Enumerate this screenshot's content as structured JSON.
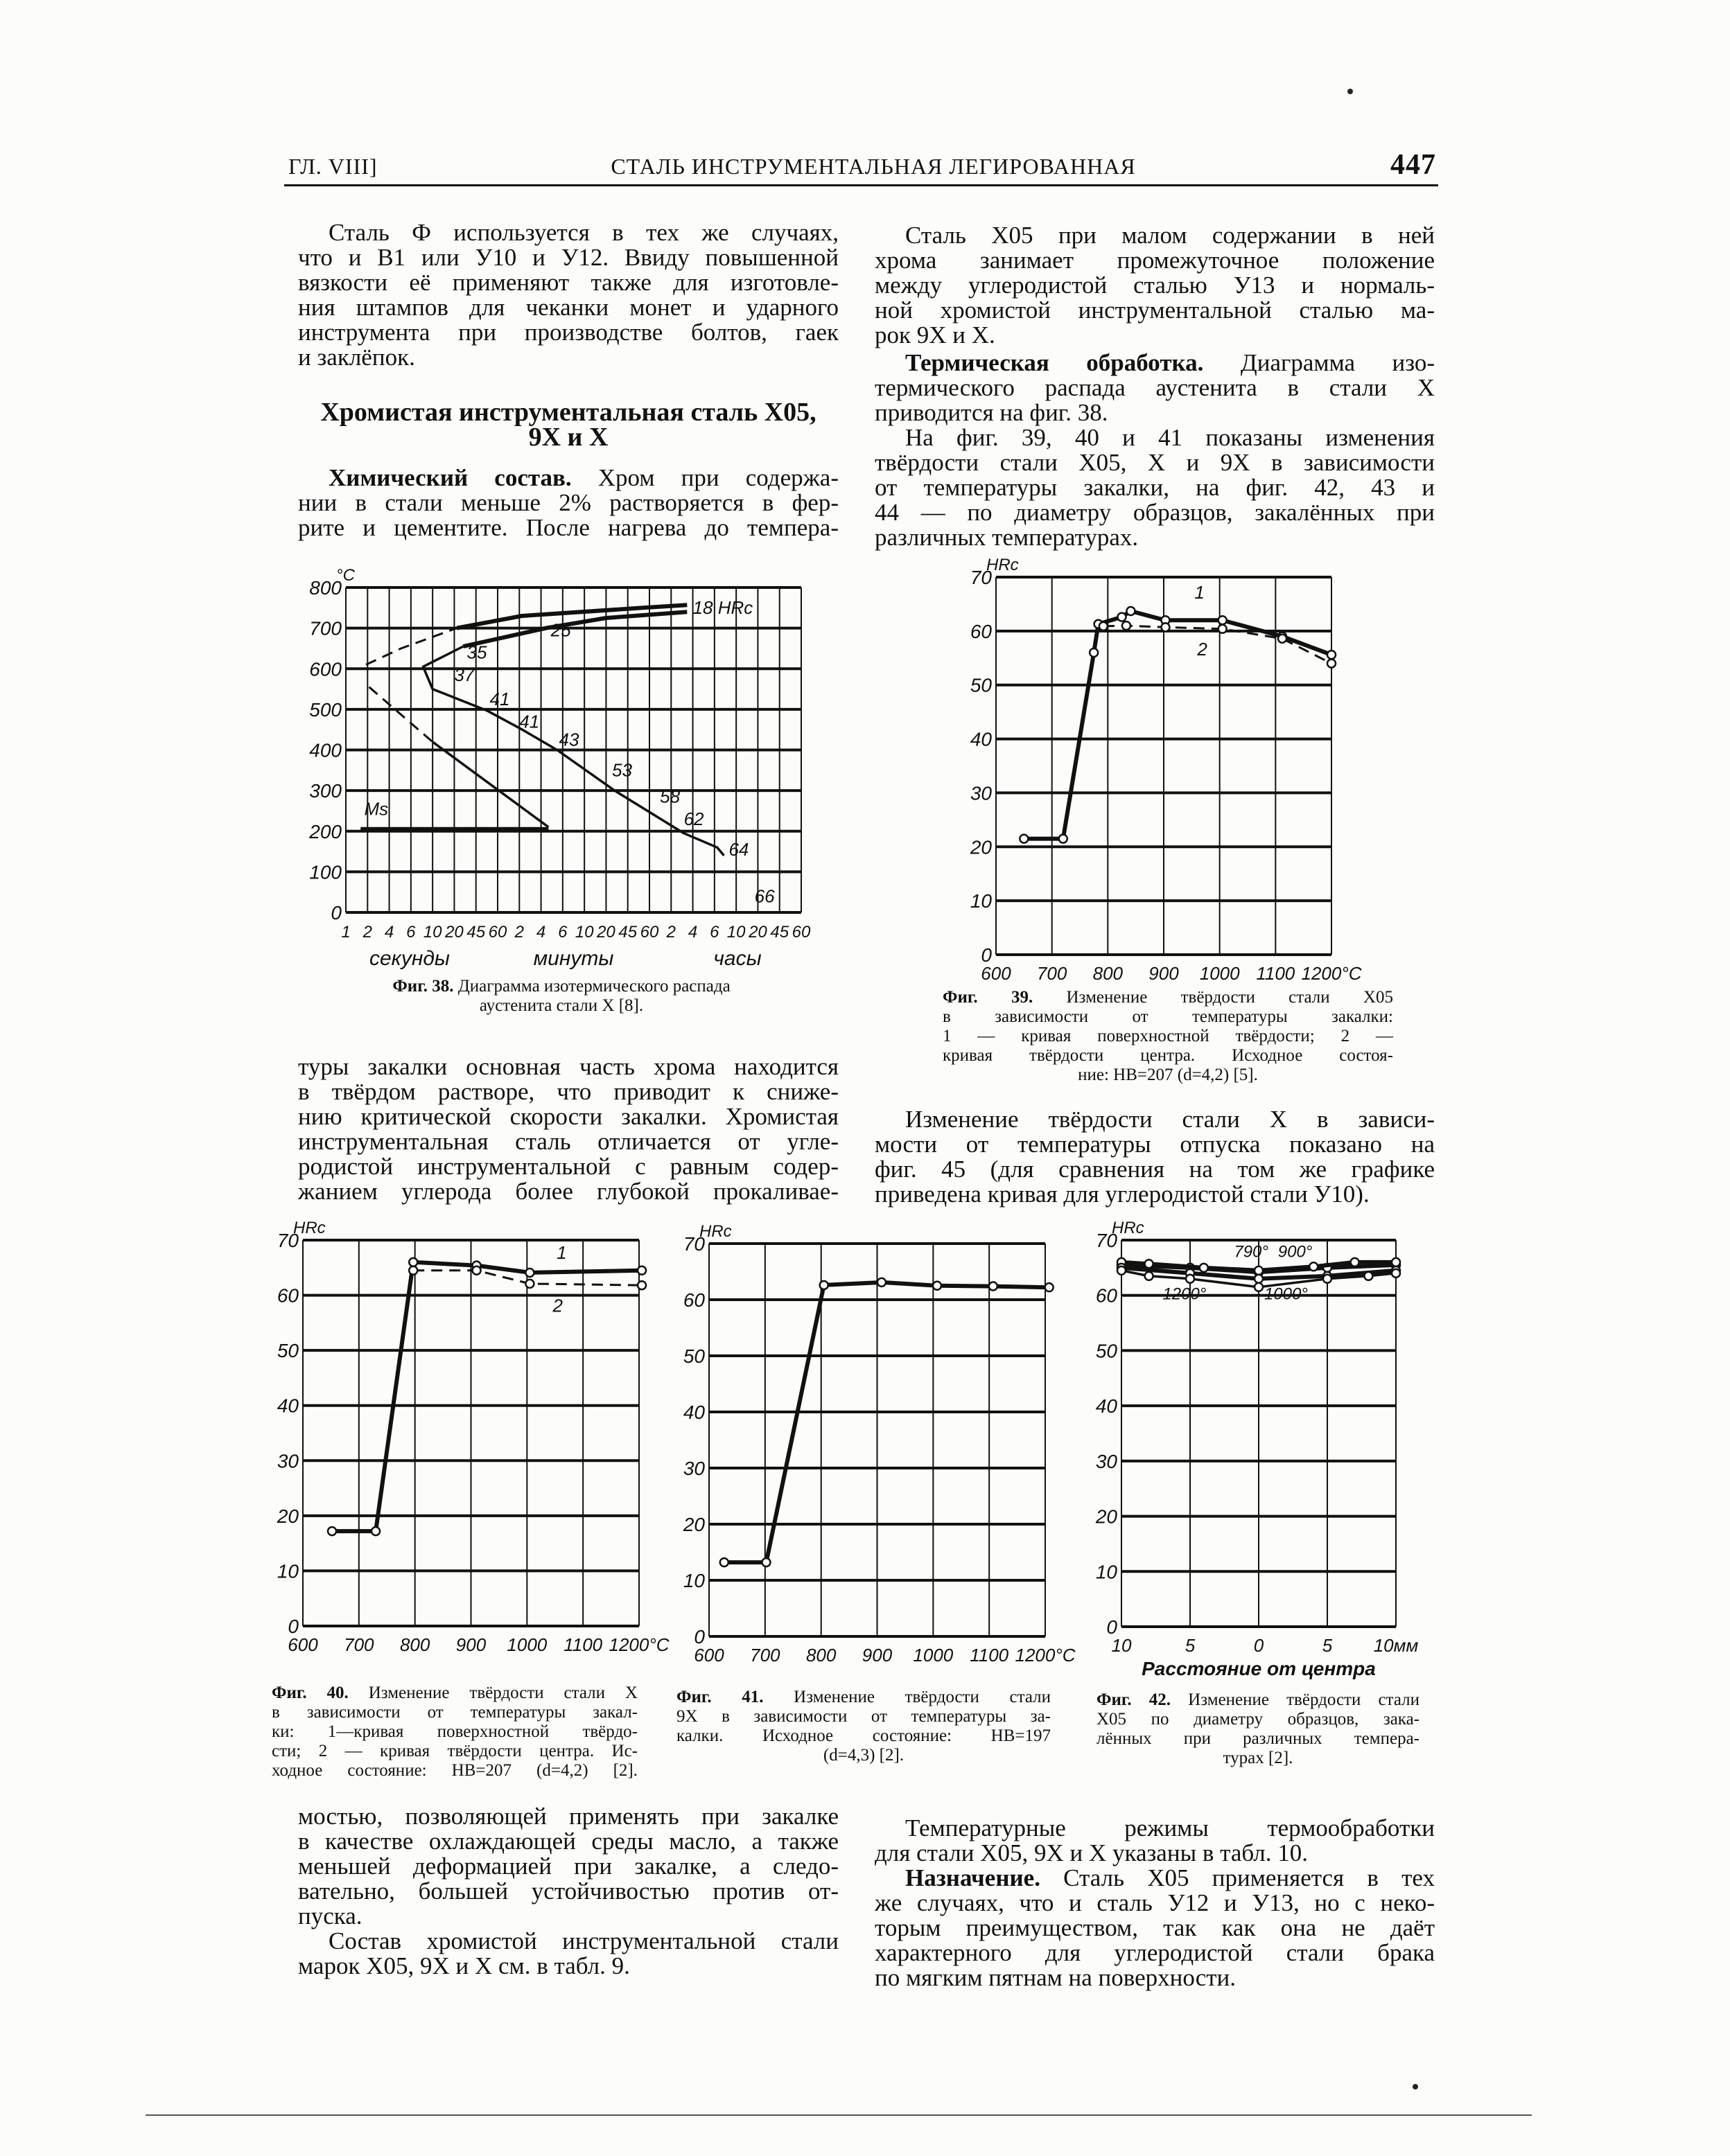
{
  "header": {
    "chapter": "ГЛ. VIII]",
    "title": "СТАЛЬ ИНСТРУМЕНТАЛЬНАЯ ЛЕГИРОВАННАЯ",
    "page_number": "447"
  },
  "left_column": {
    "para1": [
      {
        "text": "Сталь Ф используется в тех же случаях,",
        "indent": true
      },
      {
        "text": "что и В1 или У10 и У12. Ввиду повышенной"
      },
      {
        "text": "вязкости её применяют также для изготовле-"
      },
      {
        "text": "ния штампов для чеканки монет и ударного"
      },
      {
        "text": "инструмента при производстве болтов, гаек"
      },
      {
        "text": "и заклёпок.",
        "last": true
      }
    ],
    "heading": [
      "Хромистая инструментальная сталь Х05,",
      "9Х и Х"
    ],
    "para2": [
      {
        "bold": "Химический состав.",
        "text": " Хром при содержа-",
        "indent": true
      },
      {
        "text": "нии в стали меньше 2% растворяется в фер-"
      },
      {
        "text": "рите и цементите. После нагрева до темпера-"
      }
    ],
    "para3": [
      {
        "text": "туры закалки основная часть хрома находится"
      },
      {
        "text": "в твёрдом растворе, что приводит к сниже-"
      },
      {
        "text": "нию критической скорости закалки. Хромистая"
      },
      {
        "text": "инструментальная сталь отличается от угле-"
      },
      {
        "text": "родистой инструментальной с равным содер-"
      },
      {
        "text": "жанием углерода более глубокой прокаливае-"
      }
    ],
    "para4": [
      {
        "text": "мостью, позволяющей применять при закалке"
      },
      {
        "text": "в качестве охлаждающей среды масло, а также"
      },
      {
        "text": "меньшей деформацией при закалке, а следо-"
      },
      {
        "text": "вательно, большей устойчивостью против от-"
      },
      {
        "text": "пуска.",
        "last": true
      },
      {
        "text": "Состав хромистой инструментальной стали",
        "indent": true
      },
      {
        "text": "марок Х05, 9Х и Х см. в табл. 9.",
        "last": true
      }
    ]
  },
  "right_column": {
    "para1": [
      {
        "text": "Сталь Х05 при малом содержании в ней",
        "indent": true
      },
      {
        "text": "хрома занимает промежуточное положение"
      },
      {
        "text": "между углеродистой сталью У13 и нормаль-"
      },
      {
        "text": "ной хромистой инструментальной сталью ма-"
      },
      {
        "text": "рок 9Х и Х.",
        "last": true
      }
    ],
    "para2": [
      {
        "bold": "Термическая обработка.",
        "text": " Диаграмма изо-",
        "indent": true
      },
      {
        "text": "термического распада аустенита в стали Х"
      },
      {
        "text": "приводится на фиг. 38.",
        "last": true
      },
      {
        "text": "На фиг. 39, 40 и 41 показаны изменения",
        "indent": true
      },
      {
        "text": "твёрдости стали Х05, Х и 9Х в зависимости"
      },
      {
        "text": "от температуры закалки, на фиг. 42, 43 и"
      },
      {
        "text": "44 — по диаметру образцов, закалённых при"
      },
      {
        "text": "различных температурах.",
        "last": true
      }
    ],
    "para3": [
      {
        "text": "Изменение твёрдости стали Х в зависи-",
        "indent": true
      },
      {
        "text": "мости от температуры отпуска показано на"
      },
      {
        "text": "фиг. 45 (для сравнения на том же графике"
      },
      {
        "text": "приведена кривая для углеродистой стали У10).",
        "last": true
      }
    ],
    "para4": [
      {
        "text": "Температурные режимы термообработки",
        "indent": true
      },
      {
        "text": "для стали Х05, 9Х и Х указаны в табл. 10.",
        "last": true
      },
      {
        "bold": "Назначение.",
        "text": " Сталь Х05 применяется в тех",
        "indent": true
      },
      {
        "text": "же случаях, что и сталь У12 и У13, но с неко-"
      },
      {
        "text": "торым преимуществом, так как она не даёт"
      },
      {
        "text": "характерного для углеродистой стали брака"
      },
      {
        "text": "по мягким пятнам на поверхности.",
        "last": true
      }
    ]
  },
  "captions": {
    "fig38": [
      {
        "bold": "Фиг. 38.",
        "text": " Диаграмма изотермического распада",
        "center": true
      },
      {
        "text": "аустенита стали Х [8].",
        "center": true
      }
    ],
    "fig39": [
      {
        "bold": "Фиг. 39.",
        "text": " Изменение твёрдости стали Х05"
      },
      {
        "text": "в зависимости от температуры закалки:"
      },
      {
        "text": "1 — кривая поверхностной твёрдости; 2 —"
      },
      {
        "text": "кривая твёрдости центра. Исходное состоя-"
      },
      {
        "text": "ние: HB=207 (d=4,2) [5].",
        "center": true
      }
    ],
    "fig40": [
      {
        "bold": "Фиг. 40.",
        "text": " Изменение твёрдости стали Х"
      },
      {
        "text": "в зависимости от температуры закал-"
      },
      {
        "text": "ки: 1—кривая поверхностной твёрдо-"
      },
      {
        "text": "сти; 2 — кривая твёрдости центра. Ис-"
      },
      {
        "text": "ходное состояние: HB=207 (d=4,2) [2]."
      }
    ],
    "fig41": [
      {
        "bold": "Фиг. 41.",
        "text": " Изменение твёрдости стали"
      },
      {
        "text": "9Х в зависимости от температуры за-"
      },
      {
        "text": "калки. Исходное состояние: HB=197"
      },
      {
        "text": "(d=4,3) [2].",
        "center": true
      }
    ],
    "fig42": [
      {
        "bold": "Фиг. 42.",
        "text": " Изменение твёрдости стали"
      },
      {
        "text": "Х05 по диаметру образцов, зака-"
      },
      {
        "text": "лённых при различных темпера-"
      },
      {
        "text": "турах [2].",
        "center": true
      }
    ]
  },
  "chart_data": [
    {
      "id": "fig38",
      "type": "line",
      "ylabel": "°C",
      "ylim": [
        0,
        800
      ],
      "yticks": [
        0,
        100,
        200,
        300,
        400,
        500,
        600,
        700,
        800
      ],
      "xlabel_groups": [
        "секунды",
        "минуты",
        "часы"
      ],
      "x_unit": "seconds",
      "xtick_values": [
        1,
        2,
        4,
        6,
        10,
        20,
        45,
        60,
        120,
        240,
        360,
        600,
        1200,
        2700,
        3600,
        7200,
        14400,
        21600,
        36000,
        72000,
        162000,
        216000
      ],
      "xtick_labels": [
        "1",
        "2",
        "4",
        "6",
        "10",
        "20",
        "45",
        "60",
        "2",
        "4",
        "6",
        "10",
        "20",
        "45",
        "60",
        "2",
        "4",
        "6",
        "10",
        "20",
        "45",
        "60"
      ],
      "grid": true,
      "series": [
        {
          "style": "dashed",
          "points": [
            [
              1.9,
              610
            ],
            [
              5,
              650
            ],
            [
              22,
              700
            ]
          ]
        },
        {
          "style": "thick",
          "points": [
            [
              22,
              700
            ],
            [
              130,
              730
            ],
            [
              3300,
              750
            ],
            [
              12000,
              757
            ]
          ]
        },
        {
          "style": "thick",
          "points": [
            [
              12000,
              740
            ],
            [
              1200,
              725
            ],
            [
              264,
              700
            ],
            [
              28,
              655
            ]
          ]
        },
        {
          "style": "thin",
          "points": [
            [
              28,
              655
            ],
            [
              8,
              605
            ],
            [
              10,
              550
            ],
            [
              52,
              497
            ],
            [
              132,
              450
            ],
            [
              324,
              400
            ],
            [
              1650,
              300
            ],
            [
              10800,
              195
            ],
            [
              23000,
              160
            ],
            [
              27000,
              140
            ]
          ]
        },
        {
          "style": "dashed",
          "points": [
            [
              2.1,
              555
            ],
            [
              10,
              420
            ]
          ]
        },
        {
          "style": "thin",
          "points": [
            [
              10,
              420
            ],
            [
              276,
              210
            ]
          ]
        },
        {
          "style": "thick",
          "points": [
            [
              1.6,
              205
            ],
            [
              276,
              205
            ]
          ]
        }
      ],
      "annotations": [
        {
          "text": "Ms",
          "x": 1.8,
          "y": 240
        },
        {
          "text": "35",
          "x": 32,
          "y": 625
        },
        {
          "text": "37",
          "x": 20,
          "y": 570
        },
        {
          "text": "41",
          "x": 54,
          "y": 510
        },
        {
          "text": "41",
          "x": 120,
          "y": 455
        },
        {
          "text": "43",
          "x": 336,
          "y": 410
        },
        {
          "text": "53",
          "x": 1500,
          "y": 335
        },
        {
          "text": "58",
          "x": 5040,
          "y": 270
        },
        {
          "text": "62",
          "x": 10800,
          "y": 215
        },
        {
          "text": "64",
          "x": 30240,
          "y": 140
        },
        {
          "text": "66",
          "x": 64800,
          "y": 25
        },
        {
          "text": "25",
          "x": 288,
          "y": 680
        },
        {
          "text": "18 HRc",
          "x": 14400,
          "y": 735
        }
      ]
    },
    {
      "id": "fig39",
      "type": "line",
      "ylabel": "HRc",
      "ylim": [
        0,
        70
      ],
      "yticks": [
        0,
        10,
        20,
        30,
        40,
        50,
        60,
        70
      ],
      "xlim": [
        600,
        1200
      ],
      "xtick_values": [
        600,
        700,
        800,
        900,
        1000,
        1100,
        1200
      ],
      "xtick_labels": [
        "600",
        "700",
        "800",
        "900",
        "1000",
        "1100",
        "1200°C"
      ],
      "grid": true,
      "markers": true,
      "series": [
        {
          "name": "1",
          "style": "thick",
          "points": [
            [
              650,
              21.5
            ],
            [
              720,
              21.5
            ],
            [
              775,
              56
            ],
            [
              783,
              61.3
            ],
            [
              825,
              62.6
            ],
            [
              841,
              63.7
            ],
            [
              903,
              62
            ],
            [
              1005,
              62
            ],
            [
              1112,
              59
            ],
            [
              1200,
              55.6
            ]
          ]
        },
        {
          "name": "2",
          "style": "dashed",
          "points": [
            [
              792,
              60.9
            ],
            [
              833,
              61
            ],
            [
              903,
              60.7
            ],
            [
              1005,
              60.4
            ],
            [
              1112,
              58.6
            ],
            [
              1200,
              54
            ]
          ]
        }
      ],
      "annotations": [
        {
          "text": "1",
          "x": 955,
          "y": 66
        },
        {
          "text": "2",
          "x": 960,
          "y": 55.5
        }
      ]
    },
    {
      "id": "fig40",
      "type": "line",
      "ylabel": "HRc",
      "ylim": [
        0,
        70
      ],
      "yticks": [
        0,
        10,
        20,
        30,
        40,
        50,
        60,
        70
      ],
      "xlim": [
        600,
        1200
      ],
      "xtick_values": [
        600,
        700,
        800,
        900,
        1000,
        1100,
        1200
      ],
      "xtick_labels": [
        "600",
        "700",
        "800",
        "900",
        "1000",
        "1100",
        "1200°C"
      ],
      "grid": true,
      "markers": true,
      "series": [
        {
          "name": "1",
          "style": "thick",
          "points": [
            [
              652,
              17.2
            ],
            [
              730,
              17.2
            ],
            [
              797,
              66
            ],
            [
              910,
              65.4
            ],
            [
              1005,
              64.1
            ],
            [
              1205,
              64.5
            ]
          ]
        },
        {
          "name": "2",
          "style": "dashed",
          "points": [
            [
              797,
              64.5
            ],
            [
              910,
              64.5
            ],
            [
              1005,
              62.1
            ],
            [
              1205,
              61.8
            ]
          ]
        }
      ],
      "annotations": [
        {
          "text": "1",
          "x": 1053,
          "y": 66.6
        },
        {
          "text": "2",
          "x": 1046,
          "y": 57
        }
      ]
    },
    {
      "id": "fig41",
      "type": "line",
      "ylabel": "HRc",
      "ylim": [
        0,
        70
      ],
      "yticks": [
        0,
        10,
        20,
        30,
        40,
        50,
        60,
        70
      ],
      "xlim": [
        600,
        1200
      ],
      "xtick_values": [
        600,
        700,
        800,
        900,
        1000,
        1100,
        1200
      ],
      "xtick_labels": [
        "600",
        "700",
        "800",
        "900",
        "1000",
        "1100",
        "1200°C"
      ],
      "grid": true,
      "markers": true,
      "series": [
        {
          "style": "thick",
          "points": [
            [
              627,
              13.2
            ],
            [
              702,
              13.2
            ],
            [
              805,
              62.6
            ],
            [
              908,
              63.1
            ],
            [
              1007,
              62.5
            ],
            [
              1107,
              62.4
            ],
            [
              1207,
              62.2
            ]
          ]
        }
      ],
      "annotations": []
    },
    {
      "id": "fig42",
      "type": "line",
      "ylabel": "HRc",
      "ylim": [
        0,
        70
      ],
      "yticks": [
        0,
        10,
        20,
        30,
        40,
        50,
        60,
        70
      ],
      "xlim": [
        -10,
        10
      ],
      "xtick_values": [
        -10,
        -5,
        0,
        5,
        10
      ],
      "xtick_labels": [
        "10",
        "5",
        "0",
        "5",
        "10мм"
      ],
      "xlabel": "Расстояние от центра",
      "grid": true,
      "markers": true,
      "series": [
        {
          "name": "790°",
          "style": "thick",
          "points": [
            [
              -10,
              65.5
            ],
            [
              -5,
              65
            ],
            [
              0,
              64.2
            ],
            [
              5,
              65
            ],
            [
              10,
              65.5
            ]
          ]
        },
        {
          "name": "900°",
          "style": "thick",
          "points": [
            [
              -10,
              66
            ],
            [
              -8,
              65.7
            ],
            [
              -4,
              65
            ],
            [
              0,
              64.5
            ],
            [
              4,
              65.2
            ],
            [
              7,
              66
            ],
            [
              10,
              66
            ]
          ]
        },
        {
          "name": "1000°",
          "style": "thick",
          "points": [
            [
              -10,
              65
            ],
            [
              -5,
              64
            ],
            [
              0,
              63
            ],
            [
              5,
              63.5
            ],
            [
              10,
              64.5
            ]
          ]
        },
        {
          "name": "1200°",
          "style": "thin",
          "points": [
            [
              -10,
              64.5
            ],
            [
              -8,
              63.5
            ],
            [
              -5,
              63
            ],
            [
              0,
              61.5
            ],
            [
              5,
              63
            ],
            [
              8,
              63.5
            ],
            [
              10,
              64
            ]
          ]
        }
      ],
      "annotations": [
        {
          "text": "790°",
          "x": -1.8,
          "y": 66.9
        },
        {
          "text": "900°",
          "x": 1.4,
          "y": 66.9
        },
        {
          "text": "1200°",
          "x": -7,
          "y": 59.3
        },
        {
          "text": "1000°",
          "x": 0.4,
          "y": 59.3
        }
      ]
    }
  ]
}
